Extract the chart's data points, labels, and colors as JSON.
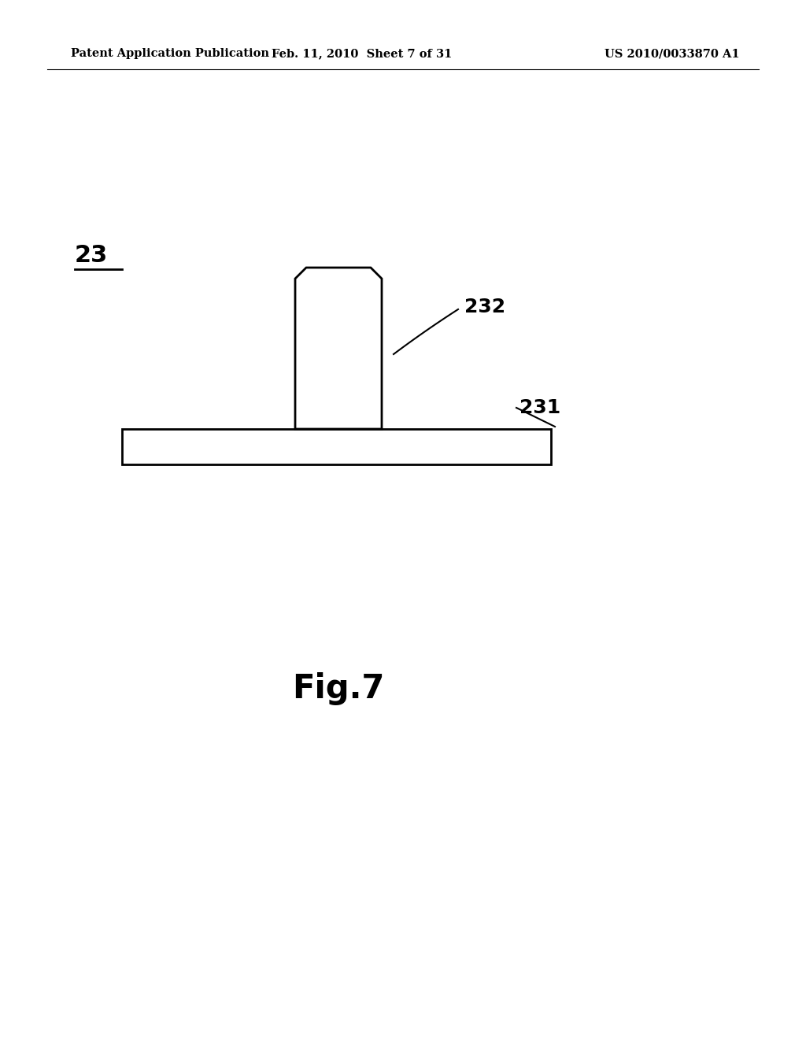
{
  "background_color": "#ffffff",
  "header_left": "Patent Application Publication",
  "header_center": "Feb. 11, 2010  Sheet 7 of 31",
  "header_right": "US 2010/0033870 A1",
  "header_fontsize": 10.5,
  "label_23_text": "23",
  "label_23_fontsize": 22,
  "fig_label_text": "Fig.7",
  "fig_label_fontsize": 30,
  "label_232_text": "232",
  "label_232_fontsize": 18,
  "label_231_text": "231",
  "label_231_fontsize": 18,
  "line_color": "#000000",
  "line_width": 1.8,
  "base_facecolor": "#ffffff",
  "base_edgecolor": "#000000",
  "shaft_facecolor": "#ffffff",
  "shaft_edgecolor": "#000000"
}
